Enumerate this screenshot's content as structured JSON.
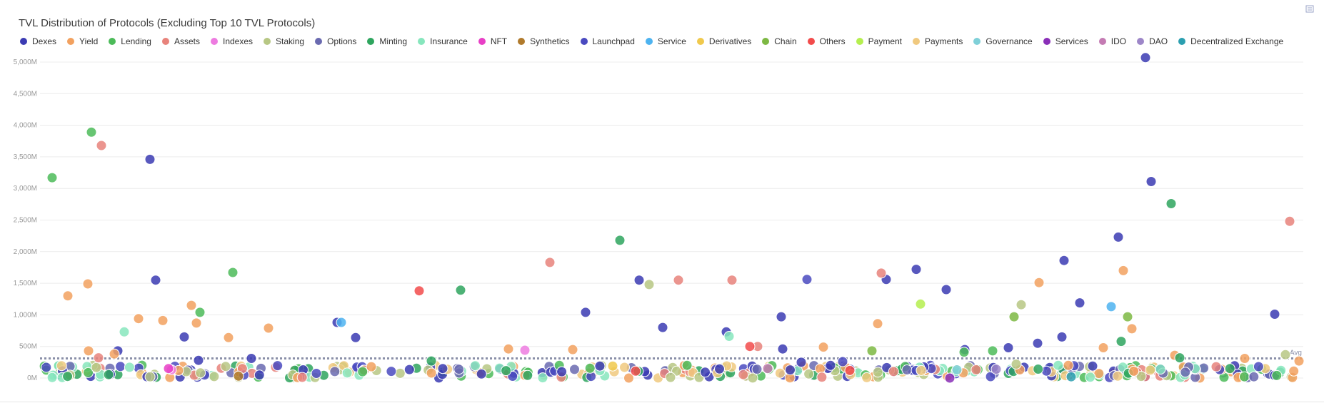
{
  "title": "TVL Distribution of Protocols (Excluding Top 10 TVL Protocols)",
  "reference_label": "Avg",
  "chart_data": {
    "type": "scatter",
    "ylim": [
      0,
      5000
    ],
    "y_ticks": [
      "0M",
      "500M",
      "1,000M",
      "1,500M",
      "2,000M",
      "2,500M",
      "3,000M",
      "3,500M",
      "4,000M",
      "4,500M",
      "5,000M"
    ],
    "grid": true,
    "legend_position": "top",
    "reference_line_value": 310,
    "series": [
      {
        "name": "Dexes",
        "color": "#3b3bb3",
        "points": [
          [
            210,
            3460
          ],
          [
            218,
            1550
          ],
          [
            165,
            430
          ],
          [
            258,
            650
          ],
          [
            278,
            280
          ],
          [
            352,
            310
          ],
          [
            498,
            640
          ],
          [
            472,
            880
          ],
          [
            820,
            1040
          ],
          [
            895,
            1550
          ],
          [
            928,
            800
          ],
          [
            1017,
            730
          ],
          [
            1094,
            970
          ],
          [
            1096,
            460
          ],
          [
            1241,
            1560
          ],
          [
            1283,
            1720
          ],
          [
            1325,
            1400
          ],
          [
            1351,
            450
          ],
          [
            1412,
            480
          ],
          [
            1453,
            550
          ],
          [
            1487,
            650
          ],
          [
            1490,
            1860
          ],
          [
            1512,
            1190
          ],
          [
            1566,
            2230
          ],
          [
            1604,
            5070
          ],
          [
            1612,
            3110
          ],
          [
            1785,
            1010
          ],
          [
            1530,
            190
          ],
          [
            1163,
            200
          ],
          [
            1122,
            250
          ],
          [
            840,
            190
          ],
          [
            620,
            150
          ]
        ]
      },
      {
        "name": "Yield",
        "color": "#f2a15f",
        "points": [
          [
            95,
            1300
          ],
          [
            123,
            1490
          ],
          [
            194,
            940
          ],
          [
            228,
            910
          ],
          [
            268,
            1150
          ],
          [
            275,
            870
          ],
          [
            320,
            640
          ],
          [
            376,
            790
          ],
          [
            124,
            430
          ],
          [
            160,
            380
          ],
          [
            1229,
            860
          ],
          [
            1428,
            130
          ],
          [
            1455,
            1510
          ],
          [
            1545,
            480
          ],
          [
            1573,
            1700
          ],
          [
            1585,
            780
          ],
          [
            1645,
            360
          ],
          [
            1823,
            270
          ],
          [
            712,
            460
          ],
          [
            802,
            450
          ],
          [
            1153,
            490
          ],
          [
            1743,
            310
          ],
          [
            1496,
            200
          ],
          [
            520,
            180
          ],
          [
            250,
            120
          ]
        ]
      },
      {
        "name": "Lending",
        "color": "#4cbb59",
        "points": [
          [
            73,
            3170
          ],
          [
            128,
            3890
          ],
          [
            280,
            1040
          ],
          [
            326,
            1670
          ],
          [
            1350,
            410
          ],
          [
            1390,
            430
          ]
        ]
      },
      {
        "name": "Assets",
        "color": "#e8837b",
        "points": [
          [
            142,
            3680
          ],
          [
            770,
            1830
          ],
          [
            1234,
            1660
          ],
          [
            950,
            1550
          ],
          [
            1025,
            1550
          ],
          [
            1061,
            500
          ],
          [
            1806,
            2480
          ],
          [
            1703,
            180
          ],
          [
            138,
            320
          ]
        ]
      },
      {
        "name": "Indexes",
        "color": "#ed7be0",
        "points": [
          [
            735,
            440
          ],
          [
            240,
            130
          ]
        ]
      },
      {
        "name": "Staking",
        "color": "#b7c784",
        "points": [
          [
            909,
            1480
          ],
          [
            1430,
            1160
          ],
          [
            1800,
            370
          ],
          [
            1423,
            220
          ]
        ]
      },
      {
        "name": "Options",
        "color": "#6a6ab0",
        "points": [
          [
            1060,
            140
          ],
          [
            1270,
            130
          ]
        ]
      },
      {
        "name": "Minting",
        "color": "#2ea55e",
        "points": [
          [
            868,
            2180
          ],
          [
            645,
            1390
          ],
          [
            604,
            270
          ],
          [
            1570,
            580
          ],
          [
            1640,
            2760
          ],
          [
            1652,
            320
          ]
        ]
      },
      {
        "name": "Insurance",
        "color": "#87e6bd",
        "points": [
          [
            174,
            730
          ],
          [
            1021,
            660
          ],
          [
            1625,
            140
          ]
        ]
      },
      {
        "name": "NFT",
        "color": "#e83fc6",
        "points": [
          [
            236,
            150
          ]
        ]
      },
      {
        "name": "Synthetics",
        "color": "#b07a2c",
        "points": [
          [
            334,
            30
          ]
        ]
      },
      {
        "name": "Launchpad",
        "color": "#4a4ac0",
        "points": [
          [
            1130,
            1560
          ],
          [
            1283,
            120
          ],
          [
            1180,
            260
          ]
        ]
      },
      {
        "name": "Service",
        "color": "#4db3f0",
        "points": [
          [
            478,
            880
          ],
          [
            1556,
            1130
          ]
        ]
      },
      {
        "name": "Derivatives",
        "color": "#f0c94c",
        "points": [
          [
            858,
            190
          ]
        ]
      },
      {
        "name": "Chain",
        "color": "#7db843",
        "points": [
          [
            1420,
            970
          ],
          [
            1579,
            970
          ],
          [
            1221,
            430
          ]
        ]
      },
      {
        "name": "Others",
        "color": "#f24b4b",
        "points": [
          [
            587,
            1380
          ],
          [
            1050,
            500
          ],
          [
            1190,
            120
          ],
          [
            890,
            110
          ]
        ]
      },
      {
        "name": "Payment",
        "color": "#b5ef4f",
        "points": [
          [
            1289,
            1170
          ]
        ]
      },
      {
        "name": "Payments",
        "color": "#f0c97f",
        "points": [
          [
            1290,
            120
          ]
        ]
      },
      {
        "name": "Governance",
        "color": "#7fd0d8",
        "points": [
          [
            1340,
            130
          ]
        ]
      },
      {
        "name": "Services",
        "color": "#8a2fb8",
        "points": [
          [
            1330,
            0
          ]
        ]
      },
      {
        "name": "IDO",
        "color": "#c47bb3",
        "points": [
          [
            1075,
            150
          ]
        ]
      },
      {
        "name": "DAO",
        "color": "#9d86c8",
        "points": [
          [
            1395,
            140
          ]
        ]
      },
      {
        "name": "Decentralized Exchange",
        "color": "#2b9fb0",
        "points": [
          [
            1500,
            20
          ]
        ]
      }
    ]
  }
}
